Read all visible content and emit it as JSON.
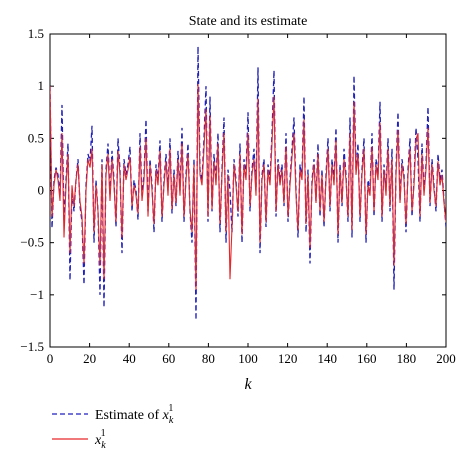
{
  "chart_data": {
    "type": "line",
    "title": "State and its estimate",
    "xlabel": "k",
    "ylabel": "",
    "xlim": [
      0,
      200
    ],
    "ylim": [
      -1.5,
      1.5
    ],
    "xticks": [
      0,
      20,
      40,
      60,
      80,
      100,
      120,
      140,
      160,
      180,
      200
    ],
    "yticks": [
      -1.5,
      -1,
      -0.5,
      0,
      0.5,
      1,
      1.5
    ],
    "xtick_labels": [
      "0",
      "20",
      "40",
      "60",
      "80",
      "100",
      "120",
      "140",
      "160",
      "180",
      "200"
    ],
    "ytick_labels": [
      "−1.5",
      "−1",
      "−0.5",
      "0",
      "0.5",
      "1",
      "1.5"
    ],
    "grid": false,
    "legend_position": "bottom-left",
    "series": [
      {
        "name": "Estimate of x",
        "name_sub": "k",
        "name_sup": "1",
        "color": "#1f1fbf",
        "style": "dashed",
        "values": [
          1.0,
          -0.36,
          0.1,
          0.22,
          0.15,
          -0.05,
          0.82,
          -0.3,
          0.1,
          0.45,
          -0.86,
          0.0,
          -0.2,
          0.1,
          0.3,
          -0.15,
          -0.3,
          -0.9,
          0.05,
          0.35,
          0.28,
          0.62,
          -0.5,
          0.1,
          -0.2,
          -1.0,
          0.3,
          -1.12,
          0.2,
          0.45,
          -0.05,
          0.38,
          0.1,
          -0.35,
          0.5,
          0.2,
          -0.6,
          0.3,
          0.15,
          0.25,
          0.42,
          -0.2,
          0.1,
          0.0,
          -0.28,
          0.55,
          -0.05,
          0.15,
          0.68,
          -0.2,
          0.3,
          0.05,
          -0.4,
          0.25,
          0.1,
          0.48,
          -0.3,
          0.1,
          0.35,
          0.0,
          0.5,
          -0.22,
          0.2,
          -0.15,
          0.38,
          0.0,
          0.6,
          -0.3,
          0.15,
          0.45,
          -0.2,
          -0.5,
          0.3,
          -1.24,
          1.38,
          0.2,
          0.1,
          0.5,
          1.0,
          -0.3,
          0.9,
          -0.2,
          0.35,
          0.1,
          0.55,
          -0.4,
          0.2,
          0.7,
          -0.5,
          0.2,
          0.0,
          -0.4,
          0.3,
          0.1,
          -0.25,
          0.45,
          -0.5,
          0.3,
          0.15,
          0.75,
          -0.2,
          0.2,
          0.4,
          0.0,
          1.18,
          -0.6,
          0.15,
          0.3,
          -0.35,
          0.25,
          0.1,
          0.55,
          1.15,
          -0.25,
          0.3,
          0.1,
          0.25,
          -0.15,
          0.55,
          -0.3,
          0.1,
          0.4,
          0.7,
          0.0,
          -0.45,
          0.25,
          0.15,
          0.9,
          -0.4,
          0.2,
          -0.7,
          0.1,
          0.3,
          -0.1,
          0.45,
          -0.25,
          0.2,
          -0.35,
          0.15,
          0.5,
          -0.2,
          0.3,
          0.1,
          0.6,
          -0.5,
          0.25,
          -0.15,
          0.4,
          0.15,
          -0.3,
          0.7,
          -0.45,
          1.1,
          0.2,
          0.45,
          -0.3,
          0.2,
          0.5,
          -0.5,
          0.1,
          0.0,
          0.55,
          -0.25,
          0.3,
          0.15,
          0.85,
          -0.3,
          0.25,
          0.0,
          0.5,
          -0.2,
          0.4,
          -0.95,
          0.2,
          0.75,
          -0.1,
          0.3,
          0.15,
          -0.4,
          0.2,
          0.5,
          -0.25,
          0.1,
          0.6,
          0.3,
          -0.3,
          0.45,
          0.0,
          0.25,
          0.8,
          -0.15,
          0.3,
          0.05,
          -0.2,
          0.35,
          0.1,
          0.2,
          -0.1,
          -0.35
        ]
      },
      {
        "name": "x",
        "name_sub": "k",
        "name_sup": "1",
        "color": "#e8262a",
        "style": "solid",
        "values": [
          1.0,
          -0.25,
          0.05,
          0.2,
          0.1,
          -0.1,
          0.55,
          -0.45,
          0.05,
          0.35,
          -0.6,
          0.05,
          -0.15,
          0.1,
          0.25,
          -0.1,
          -0.25,
          -0.7,
          0.0,
          0.3,
          0.22,
          0.4,
          -0.4,
          0.05,
          -0.2,
          -0.72,
          0.25,
          -0.85,
          0.15,
          0.35,
          -0.1,
          0.3,
          0.05,
          -0.3,
          0.38,
          0.15,
          -0.45,
          0.25,
          0.1,
          0.2,
          0.32,
          -0.15,
          0.05,
          -0.05,
          -0.22,
          0.42,
          -0.1,
          0.1,
          0.5,
          -0.25,
          0.25,
          0.0,
          -0.32,
          0.2,
          0.05,
          0.38,
          -0.25,
          0.05,
          0.28,
          -0.05,
          0.4,
          -0.18,
          0.15,
          -0.12,
          0.3,
          -0.05,
          0.45,
          -0.25,
          0.1,
          0.35,
          -0.18,
          -0.4,
          0.25,
          -0.95,
          1.02,
          0.15,
          0.05,
          0.4,
          0.78,
          -0.25,
          0.72,
          -0.18,
          0.28,
          0.05,
          0.45,
          -0.32,
          0.15,
          0.55,
          -0.4,
          0.15,
          -0.85,
          -0.35,
          0.25,
          0.05,
          -0.2,
          0.35,
          -0.42,
          0.25,
          0.1,
          0.55,
          -0.15,
          0.15,
          0.3,
          -0.05,
          0.88,
          -0.5,
          0.1,
          0.25,
          -0.3,
          0.2,
          0.05,
          0.45,
          0.9,
          -0.2,
          0.25,
          0.05,
          0.2,
          -0.12,
          0.42,
          -0.25,
          0.05,
          0.32,
          0.55,
          -0.05,
          -0.38,
          0.2,
          0.1,
          0.68,
          -0.32,
          0.15,
          -0.55,
          0.05,
          0.25,
          -0.12,
          0.35,
          -0.2,
          0.15,
          -0.3,
          0.1,
          0.4,
          -0.15,
          0.25,
          0.05,
          0.48,
          -0.42,
          0.2,
          -0.12,
          0.3,
          0.1,
          -0.25,
          0.55,
          -0.38,
          0.85,
          0.15,
          0.35,
          -0.25,
          0.15,
          0.4,
          -0.42,
          0.05,
          -0.05,
          0.42,
          -0.2,
          0.25,
          0.1,
          0.65,
          -0.25,
          0.2,
          -0.05,
          0.4,
          -0.15,
          0.3,
          -0.72,
          0.15,
          0.58,
          -0.12,
          0.25,
          0.1,
          -0.32,
          0.15,
          0.4,
          -0.2,
          0.05,
          0.48,
          0.55,
          -0.25,
          0.35,
          -0.05,
          0.2,
          0.6,
          -0.12,
          0.25,
          0.0,
          -0.15,
          0.28,
          0.05,
          0.15,
          -0.12,
          -0.3
        ]
      }
    ]
  }
}
